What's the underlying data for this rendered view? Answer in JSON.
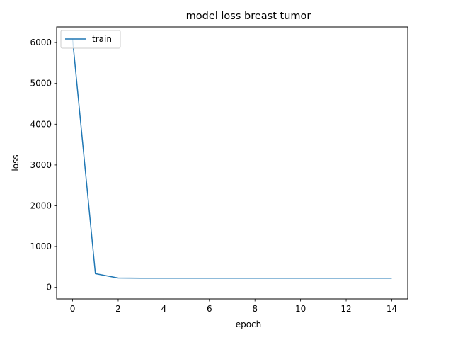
{
  "chart_data": {
    "type": "line",
    "title": "model loss breast tumor",
    "xlabel": "epoch",
    "ylabel": "loss",
    "x": [
      0,
      1,
      2,
      3,
      4,
      5,
      6,
      7,
      8,
      9,
      10,
      11,
      12,
      13,
      14
    ],
    "series": [
      {
        "name": "train",
        "color": "#1f77b4",
        "values": [
          6080,
          335,
          230,
          225,
          224,
          224,
          224,
          224,
          224,
          224,
          224,
          224,
          224,
          224,
          224
        ]
      }
    ],
    "xlim": [
      -0.7,
      14.7
    ],
    "ylim": [
      -283,
      6384
    ],
    "xticks": [
      0,
      2,
      4,
      6,
      8,
      10,
      12,
      14
    ],
    "yticks": [
      0,
      1000,
      2000,
      3000,
      4000,
      5000,
      6000
    ],
    "grid": false,
    "legend_position": "top-left"
  }
}
